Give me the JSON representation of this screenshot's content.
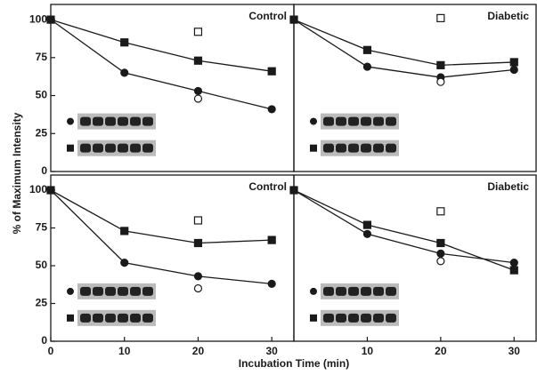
{
  "ylabel": "% of Maximum Intensity",
  "xlabel": "Incubation Time (min)",
  "chart_data": [
    {
      "type": "line",
      "title": "Control",
      "x": [
        0,
        10,
        20,
        30
      ],
      "xlim": [
        0,
        33
      ],
      "ylim": [
        0,
        110
      ],
      "yticks": [
        0,
        25,
        50,
        75,
        100
      ],
      "series": [
        {
          "marker": "square",
          "filled": true,
          "color": "#1a1a1a",
          "values": [
            100,
            85,
            73,
            66
          ]
        },
        {
          "marker": "circle",
          "filled": true,
          "color": "#1a1a1a",
          "values": [
            100,
            65,
            53,
            41
          ]
        },
        {
          "marker": "square",
          "filled": false,
          "line": false,
          "color": "#1a1a1a",
          "values": [
            null,
            null,
            92,
            null
          ]
        },
        {
          "marker": "circle",
          "filled": false,
          "line": false,
          "color": "#1a1a1a",
          "values": [
            null,
            null,
            48,
            null
          ]
        }
      ]
    },
    {
      "type": "line",
      "title": "Diabetic",
      "x": [
        0,
        10,
        20,
        30
      ],
      "xlim": [
        0,
        33
      ],
      "ylim": [
        0,
        110
      ],
      "series": [
        {
          "marker": "square",
          "filled": true,
          "color": "#1a1a1a",
          "values": [
            100,
            80,
            70,
            72
          ]
        },
        {
          "marker": "circle",
          "filled": true,
          "color": "#1a1a1a",
          "values": [
            100,
            69,
            62,
            67
          ]
        },
        {
          "marker": "square",
          "filled": false,
          "line": false,
          "color": "#1a1a1a",
          "values": [
            null,
            null,
            101,
            null
          ]
        },
        {
          "marker": "circle",
          "filled": false,
          "line": false,
          "color": "#1a1a1a",
          "values": [
            null,
            null,
            59,
            null
          ]
        }
      ]
    },
    {
      "type": "line",
      "title": "Control",
      "x": [
        0,
        10,
        20,
        30
      ],
      "xlim": [
        0,
        33
      ],
      "ylim": [
        0,
        110
      ],
      "yticks": [
        0,
        25,
        50,
        75,
        100
      ],
      "xticks": [
        0,
        10,
        20,
        30
      ],
      "series": [
        {
          "marker": "square",
          "filled": true,
          "color": "#1a1a1a",
          "values": [
            100,
            73,
            65,
            67
          ]
        },
        {
          "marker": "circle",
          "filled": true,
          "color": "#1a1a1a",
          "values": [
            100,
            52,
            43,
            38
          ]
        },
        {
          "marker": "square",
          "filled": false,
          "line": false,
          "color": "#1a1a1a",
          "values": [
            null,
            null,
            80,
            null
          ]
        },
        {
          "marker": "circle",
          "filled": false,
          "line": false,
          "color": "#1a1a1a",
          "values": [
            null,
            null,
            35,
            null
          ]
        }
      ]
    },
    {
      "type": "line",
      "title": "Diabetic",
      "x": [
        0,
        10,
        20,
        30
      ],
      "xlim": [
        0,
        33
      ],
      "ylim": [
        0,
        110
      ],
      "xticks": [
        10,
        20,
        30
      ],
      "series": [
        {
          "marker": "square",
          "filled": true,
          "color": "#1a1a1a",
          "values": [
            100,
            77,
            65,
            47
          ]
        },
        {
          "marker": "circle",
          "filled": true,
          "color": "#1a1a1a",
          "values": [
            100,
            71,
            58,
            52
          ]
        },
        {
          "marker": "square",
          "filled": false,
          "line": false,
          "color": "#1a1a1a",
          "values": [
            null,
            null,
            86,
            null
          ]
        },
        {
          "marker": "circle",
          "filled": false,
          "line": false,
          "color": "#1a1a1a",
          "values": [
            null,
            null,
            53,
            null
          ]
        }
      ]
    }
  ]
}
